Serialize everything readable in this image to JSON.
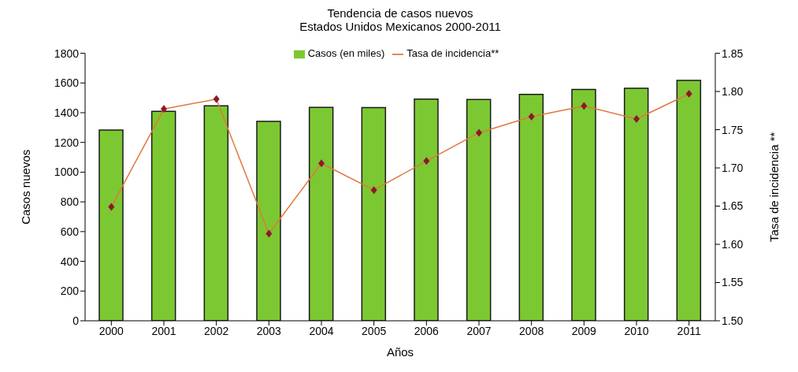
{
  "chart_data": {
    "type": "bar",
    "title": "Tendencia de casos nuevos",
    "subtitle": "Estados Unidos Mexicanos 2000-2011",
    "xlabel": "Años",
    "ylabel": "Casos nuevos",
    "y2label": "Tasa de incidencia **",
    "categories": [
      "2000",
      "2001",
      "2002",
      "2003",
      "2004",
      "2005",
      "2006",
      "2007",
      "2008",
      "2009",
      "2010",
      "2011"
    ],
    "series": [
      {
        "name": "Casos (en miles)",
        "color": "#7cc832",
        "values": [
          1283,
          1409,
          1447,
          1341,
          1436,
          1435,
          1492,
          1489,
          1523,
          1556,
          1565,
          1617
        ]
      },
      {
        "name": "Tasa de incidencia**",
        "type": "line",
        "axis": "y2",
        "color": "#e0783c",
        "marker": "diamond",
        "values": [
          1.649,
          1.777,
          1.79,
          1.614,
          1.706,
          1.671,
          1.709,
          1.746,
          1.767,
          1.781,
          1.764,
          1.797
        ]
      }
    ],
    "ylim": [
      0,
      1800
    ],
    "yticks": [
      0,
      200,
      400,
      600,
      800,
      1000,
      1200,
      1400,
      1600,
      1800
    ],
    "y2lim": [
      1.5,
      1.85
    ],
    "y2ticks": [
      {
        "value": 1.5,
        "label": "1.50"
      },
      {
        "value": 1.55,
        "label": "1.55"
      },
      {
        "value": 1.6,
        "label": "1.60"
      },
      {
        "value": 1.65,
        "label": "1.65"
      },
      {
        "value": 1.7,
        "label": "1.70"
      },
      {
        "value": 1.75,
        "label": "1.75"
      },
      {
        "value": 1.8,
        "label": "1.80"
      },
      {
        "value": 1.85,
        "label": "1.85"
      }
    ],
    "grid": false,
    "legend": "top"
  }
}
